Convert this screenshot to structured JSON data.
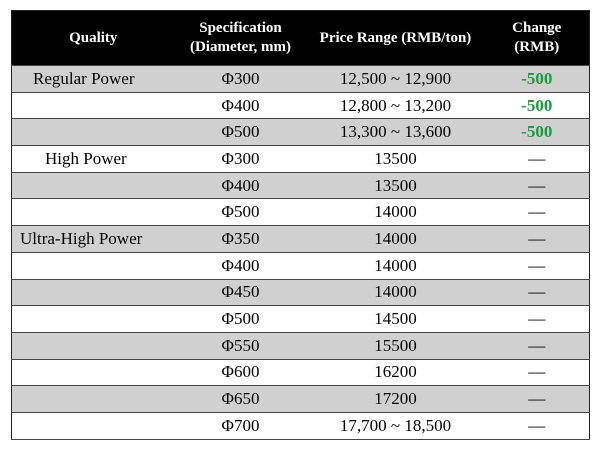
{
  "headers": {
    "quality": "Quality",
    "spec_line1": "Specification",
    "spec_line2": "(Diameter, mm)",
    "price": "Price Range (RMB/ton)",
    "change_line1": "Change",
    "change_line2": "(RMB)"
  },
  "rows": [
    {
      "quality": "Regular Power",
      "spec": "Φ300",
      "price": "12,500 ~ 12,900",
      "change": "-500"
    },
    {
      "quality": "",
      "spec": "Φ400",
      "price": "12,800 ~ 13,200",
      "change": "-500"
    },
    {
      "quality": "",
      "spec": "Φ500",
      "price": "13,300 ~ 13,600",
      "change": "-500"
    },
    {
      "quality": "High Power",
      "spec": "Φ300",
      "price": "13500",
      "change": "—"
    },
    {
      "quality": "",
      "spec": "Φ400",
      "price": "13500",
      "change": "—"
    },
    {
      "quality": "",
      "spec": "Φ500",
      "price": "14000",
      "change": "—"
    },
    {
      "quality": "Ultra-High Power",
      "spec": "Φ350",
      "price": "14000",
      "change": "—"
    },
    {
      "quality": "",
      "spec": "Φ400",
      "price": "14000",
      "change": "—"
    },
    {
      "quality": "",
      "spec": "Φ450",
      "price": "14000",
      "change": "—"
    },
    {
      "quality": "",
      "spec": "Φ500",
      "price": "14500",
      "change": "—"
    },
    {
      "quality": "",
      "spec": "Φ550",
      "price": "15500",
      "change": "—"
    },
    {
      "quality": "",
      "spec": "Φ600",
      "price": "16200",
      "change": "—"
    },
    {
      "quality": "",
      "spec": "Φ650",
      "price": "17200",
      "change": "—"
    },
    {
      "quality": "",
      "spec": "Φ700",
      "price": "17,700 ~ 18,500",
      "change": "—"
    }
  ],
  "colors": {
    "header_bg": "#000000",
    "header_text": "#ffffff",
    "row_shade": "#d0d0d0",
    "row_plain": "#ffffff",
    "change_negative": "#1a9a3c"
  }
}
